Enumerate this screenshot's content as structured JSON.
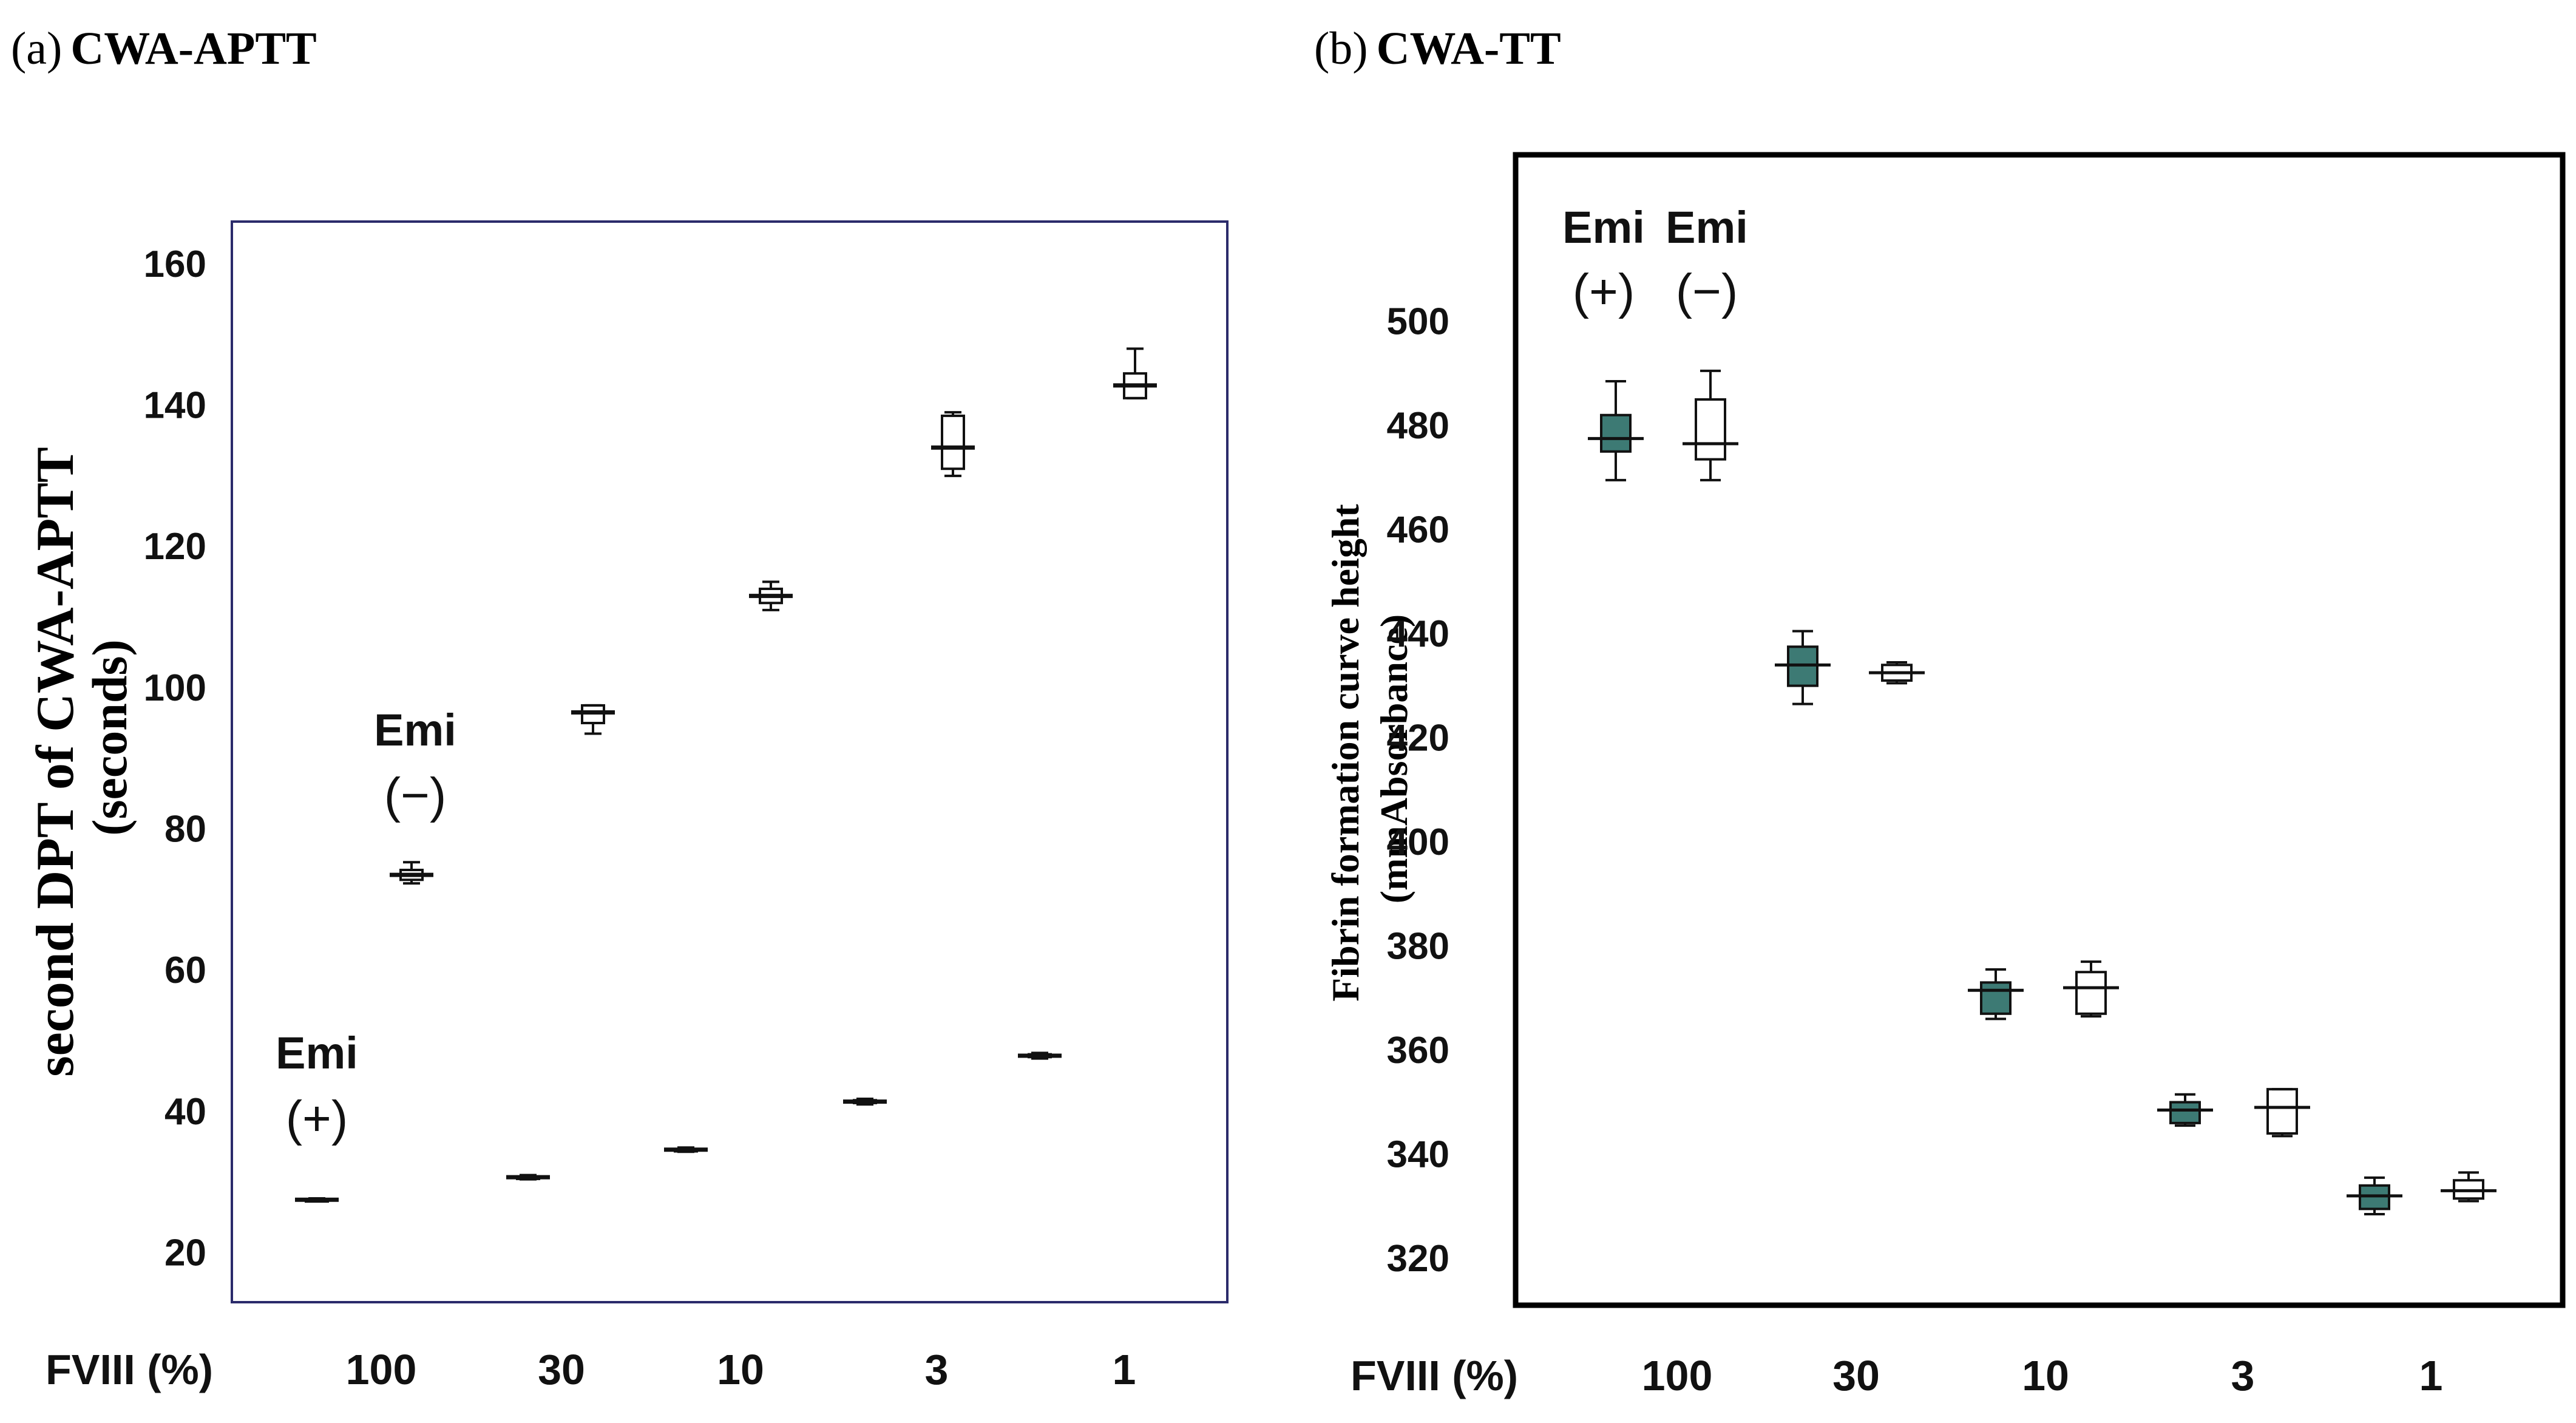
{
  "colors": {
    "emi_plus_b": "#3d7a74",
    "frame_a": "#2b2b6b",
    "frame_b": "#000000"
  },
  "chart_data": [
    {
      "type": "box",
      "panel_label": "(a)",
      "title": "CWA-APTT",
      "ylabel_line1": "second DPT of CWA-APTT",
      "ylabel_line2": "(seconds)",
      "xlabel": "FVIII (%)",
      "categories": [
        "100",
        "30",
        "10",
        "3",
        "1"
      ],
      "yticks": [
        20,
        40,
        60,
        80,
        100,
        120,
        140,
        160
      ],
      "ylim": [
        13,
        166
      ],
      "annotations": [
        {
          "text": "Emi",
          "sign": "(+)",
          "series": "Emi (+)"
        },
        {
          "text": "Emi",
          "sign": "(−)",
          "series": "Emi (−)"
        }
      ],
      "series": [
        {
          "name": "Emi (+)",
          "filled": false,
          "boxes": [
            {
              "category": "100",
              "min": 27.3,
              "q1": 27.4,
              "median": 27.5,
              "q3": 27.6,
              "max": 27.7
            },
            {
              "category": "30",
              "min": 30.4,
              "q1": 30.6,
              "median": 30.7,
              "q3": 30.8,
              "max": 31.0
            },
            {
              "category": "10",
              "min": 34.3,
              "q1": 34.5,
              "median": 34.6,
              "q3": 34.7,
              "max": 34.9
            },
            {
              "category": "3",
              "min": 41.0,
              "q1": 41.2,
              "median": 41.4,
              "q3": 41.6,
              "max": 41.8
            },
            {
              "category": "1",
              "min": 47.5,
              "q1": 47.7,
              "median": 47.9,
              "q3": 48.1,
              "max": 48.3
            }
          ]
        },
        {
          "name": "Emi (−)",
          "filled": false,
          "boxes": [
            {
              "category": "100",
              "min": 72.3,
              "q1": 72.8,
              "median": 73.5,
              "q3": 74.2,
              "max": 75.3
            },
            {
              "category": "30",
              "min": 93.5,
              "q1": 95.0,
              "median": 96.5,
              "q3": 97.5,
              "max": 97.5
            },
            {
              "category": "10",
              "min": 111.0,
              "q1": 112.0,
              "median": 113.0,
              "q3": 114.0,
              "max": 115.0
            },
            {
              "category": "3",
              "min": 130.0,
              "q1": 131.0,
              "median": 134.0,
              "q3": 138.5,
              "max": 139.0
            },
            {
              "category": "1",
              "min": 141.0,
              "q1": 141.0,
              "median": 142.8,
              "q3": 144.5,
              "max": 148.0
            }
          ]
        }
      ]
    },
    {
      "type": "box",
      "panel_label": "(b)",
      "title": "CWA-TT",
      "ylabel_line1": "Fibrin formation curve height",
      "ylabel_line2": "(mmAbsorbance)",
      "xlabel": "FVIII (%)",
      "categories": [
        "100",
        "30",
        "10",
        "3",
        "1"
      ],
      "yticks": [
        320,
        340,
        360,
        380,
        400,
        420,
        440,
        460,
        480,
        500
      ],
      "ylim": [
        311,
        532
      ],
      "annotations": [
        {
          "text": "Emi",
          "sign": "(+)",
          "series": "Emi (+)"
        },
        {
          "text": "Emi",
          "sign": "(−)",
          "series": "Emi (−)"
        }
      ],
      "series": [
        {
          "name": "Emi (+)",
          "filled": true,
          "boxes": [
            {
              "category": "100",
              "min": 469.5,
              "q1": 475.0,
              "median": 477.5,
              "q3": 482.0,
              "max": 488.5
            },
            {
              "category": "30",
              "min": 426.5,
              "q1": 430.0,
              "median": 434.0,
              "q3": 437.5,
              "max": 440.5
            },
            {
              "category": "10",
              "min": 366.0,
              "q1": 367.0,
              "median": 371.5,
              "q3": 373.0,
              "max": 375.5
            },
            {
              "category": "3",
              "min": 345.5,
              "q1": 346.0,
              "median": 348.5,
              "q3": 350.0,
              "max": 351.5
            },
            {
              "category": "1",
              "min": 328.5,
              "q1": 329.5,
              "median": 332.0,
              "q3": 334.0,
              "max": 335.5
            }
          ]
        },
        {
          "name": "Emi (−)",
          "filled": false,
          "boxes": [
            {
              "category": "100",
              "min": 469.5,
              "q1": 473.5,
              "median": 476.5,
              "q3": 485.0,
              "max": 490.5
            },
            {
              "category": "30",
              "min": 430.5,
              "q1": 431.0,
              "median": 432.5,
              "q3": 434.0,
              "max": 434.5
            },
            {
              "category": "10",
              "min": 366.5,
              "q1": 367.0,
              "median": 372.0,
              "q3": 375.0,
              "max": 377.0
            },
            {
              "category": "3",
              "min": 343.5,
              "q1": 344.0,
              "median": 349.0,
              "q3": 352.5,
              "max": 352.5
            },
            {
              "category": "1",
              "min": 331.0,
              "q1": 331.5,
              "median": 333.0,
              "q3": 335.0,
              "max": 336.5
            }
          ]
        }
      ]
    }
  ]
}
